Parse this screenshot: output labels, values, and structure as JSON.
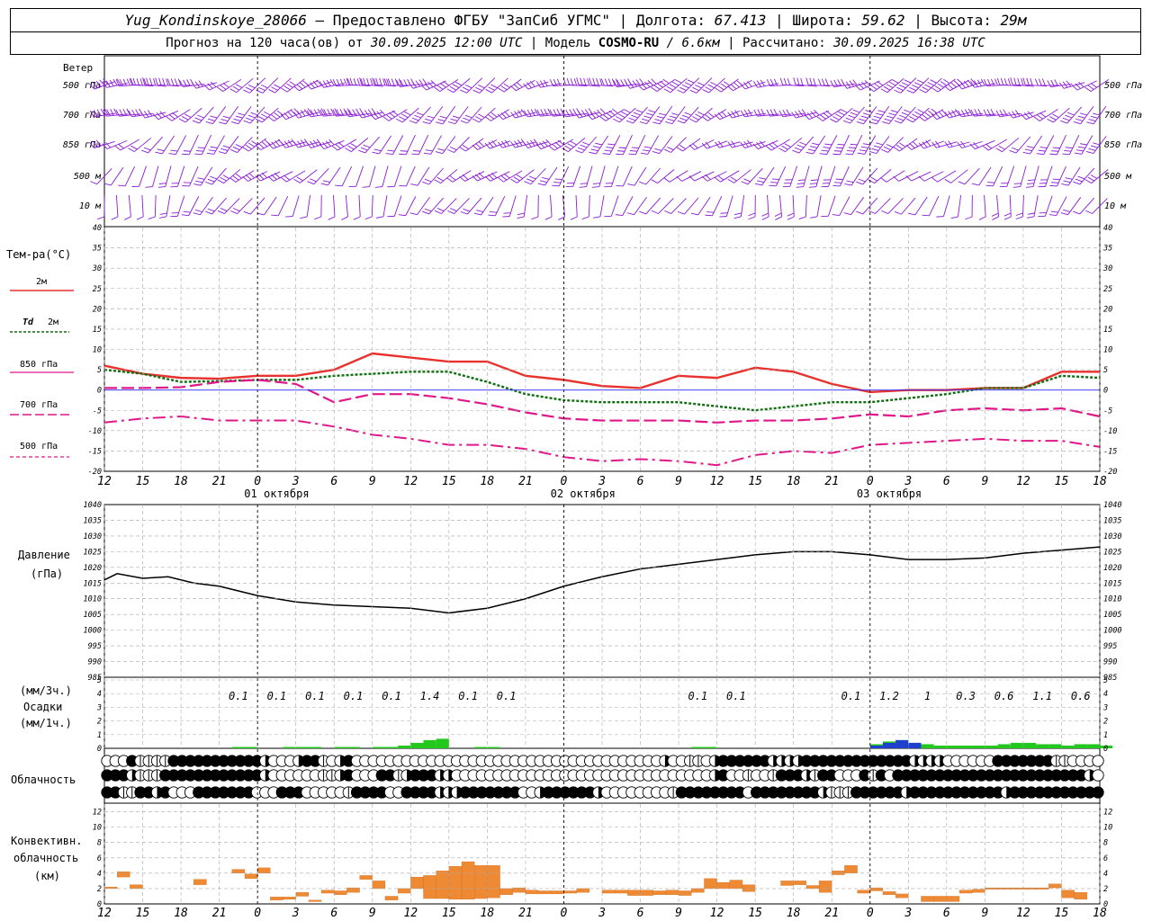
{
  "header": {
    "station": "Yug_Kondinskoye_28066",
    "provided": "– Предоставлено ФГБУ \"ЗапСиб УГМС\"",
    "lon_label": "Долгота:",
    "lon": "67.413",
    "lat_label": "Широта:",
    "lat": "59.62",
    "alt_label": "Высота:",
    "alt": "29м",
    "forecast_label": "Прогноз на 120 часа(ов) от",
    "forecast_from": "30.09.2025 12:00 UTC",
    "model_label": "Модель",
    "model": "COSMO-RU",
    "model_res": "/ 6.6км",
    "calc_label": "Рассчитано:",
    "calc_time": "30.09.2025 16:38 UTC"
  },
  "colors": {
    "t2m": "#e8322e",
    "td2m": "#0f6e0f",
    "t850": "#e0178a",
    "wind": "#8a1bd6",
    "pressure": "#000000",
    "precip_green": "#22c81e",
    "precip_blue": "#1f3fcf",
    "convective": "#ee8a33",
    "grid": "#a8a8a8"
  },
  "wind_panel": {
    "title": "Ветер",
    "levels": [
      "500 гПа",
      "700 гПа",
      "850 гПа",
      "500 м",
      "10 м"
    ]
  },
  "temp_panel": {
    "title": "Тем-ра(°С)",
    "legend": [
      {
        "label": "2м",
        "style": "solid-red"
      },
      {
        "label": "Td",
        "label2": "2м",
        "style": "dotted-green"
      },
      {
        "label": "850 гПа",
        "style": "dash-magenta"
      },
      {
        "label": "700 гПа",
        "style": "dashdot-magenta"
      },
      {
        "label": "500 гПа",
        "style": "thin-dash-magenta"
      }
    ]
  },
  "pressure_panel": {
    "title": "Давление",
    "unit": "(гПа)"
  },
  "precip_panel": {
    "unit_top": "(мм/3ч.)",
    "title": "Осадки",
    "unit_bottom": "(мм/1ч.)"
  },
  "cloud_panel": {
    "title": "Облачность"
  },
  "conv_panel": {
    "title_l1": "Конвективн.",
    "title_l2": "облачность",
    "unit": "(км)"
  },
  "time_axis": {
    "hours": [
      "12",
      "15",
      "18",
      "21",
      "0",
      "3",
      "6",
      "9",
      "12",
      "15",
      "18",
      "21",
      "0",
      "3",
      "6",
      "9",
      "12",
      "15",
      "18",
      "21",
      "0",
      "3",
      "6",
      "9",
      "12",
      "15",
      "18"
    ],
    "dates": [
      {
        "label": "01 октября",
        "at": 13.5
      },
      {
        "label": "02 октября",
        "at": 37.5
      },
      {
        "label": "03 октября",
        "at": 61.5
      }
    ],
    "day_boundaries": [
      12,
      36,
      60
    ]
  },
  "chart_data": [
    {
      "type": "line",
      "title": "Тем-ра(°С)",
      "ylim": [
        -20,
        40
      ],
      "yticks": [
        -20,
        -15,
        -10,
        -5,
        0,
        5,
        10,
        15,
        20,
        25,
        30,
        35,
        40
      ],
      "x_hours_from_start": [
        0,
        3,
        6,
        9,
        12,
        15,
        18,
        21,
        24,
        27,
        30,
        33,
        36,
        39,
        42,
        45,
        48,
        51,
        54,
        57,
        60,
        63,
        66,
        69,
        72,
        75,
        78
      ],
      "series": [
        {
          "name": "2м",
          "values": [
            6,
            4,
            3,
            2.8,
            3.5,
            3.5,
            5,
            9,
            8,
            7,
            7,
            3.5,
            2.5,
            1,
            0.5,
            3.5,
            3,
            5.5,
            4.5,
            1.5,
            -0.5,
            0,
            0,
            0.5,
            0.5,
            4.5,
            4.5
          ]
        },
        {
          "name": "Td 2м",
          "values": [
            5,
            4,
            2,
            2.2,
            2.5,
            2.5,
            3.5,
            4,
            4.5,
            4.5,
            2,
            -1,
            -2.5,
            -3,
            -3,
            -3,
            -4,
            -5,
            -4,
            -3,
            -3,
            -2,
            -1,
            0.5,
            0.5,
            3.5,
            3
          ]
        },
        {
          "name": "850 гПа",
          "values": [
            0.5,
            0.5,
            0.7,
            2,
            2.5,
            1.5,
            -3,
            -1,
            -1,
            -2,
            -3.5,
            -5.5,
            -7,
            -7.5,
            -7.5,
            -7.5,
            -8,
            -7.5,
            -7.5,
            -7,
            -6,
            -6.5,
            -5,
            -4.5,
            -5,
            -4.5,
            -6.5
          ]
        },
        {
          "name": "700 гПа",
          "values": [
            -8,
            -7,
            -6.5,
            -7.5,
            -7.5,
            -7.5,
            -9,
            -11,
            -12,
            -13.5,
            -13.5,
            -14.5,
            -16.5,
            -17.5,
            -17,
            -17.5,
            -18.5,
            -16,
            -15,
            -15.5,
            -13.5,
            -13,
            -12.5,
            -12,
            -12.5,
            -12.5,
            -14
          ]
        },
        {
          "name": "500 гПа",
          "values": []
        }
      ]
    },
    {
      "type": "line",
      "title": "Давление",
      "ylabel": "(гПа)",
      "ylim": [
        985,
        1040
      ],
      "yticks": [
        985,
        990,
        995,
        1000,
        1005,
        1010,
        1015,
        1020,
        1025,
        1030,
        1035,
        1040
      ],
      "x_hours_from_start": [
        0,
        1,
        3,
        5,
        7,
        9,
        12,
        15,
        18,
        21,
        24,
        27,
        30,
        33,
        36,
        39,
        42,
        45,
        48,
        51,
        54,
        57,
        60,
        63,
        66,
        69,
        72,
        75,
        78
      ],
      "series": [
        {
          "name": "Давление",
          "values": [
            1016,
            1018,
            1016.5,
            1017,
            1015,
            1014,
            1011,
            1009,
            1008,
            1007.5,
            1007,
            1005.5,
            1007,
            1010,
            1014,
            1017,
            1019.5,
            1021,
            1022.5,
            1024,
            1025,
            1025,
            1024,
            1022.5,
            1022.5,
            1023,
            1024.5,
            1025.5,
            1026.5
          ]
        }
      ]
    },
    {
      "type": "bar",
      "title": "Осадки",
      "totals_3h": [
        {
          "hour": 10.5,
          "label": "0.1"
        },
        {
          "hour": 13.5,
          "label": "0.1"
        },
        {
          "hour": 16.5,
          "label": "0.1"
        },
        {
          "hour": 19.5,
          "label": "0.1"
        },
        {
          "hour": 22.5,
          "label": "0.1"
        },
        {
          "hour": 25.5,
          "label": "1.4"
        },
        {
          "hour": 28.5,
          "label": "0.1"
        },
        {
          "hour": 31.5,
          "label": "0.1"
        },
        {
          "hour": 46.5,
          "label": "0.1"
        },
        {
          "hour": 49.5,
          "label": "0.1"
        },
        {
          "hour": 58.5,
          "label": "0.1"
        },
        {
          "hour": 61.5,
          "label": "1.2"
        },
        {
          "hour": 64.5,
          "label": "1"
        },
        {
          "hour": 67.5,
          "label": "0.3"
        },
        {
          "hour": 70.5,
          "label": "0.6"
        },
        {
          "hour": 73.5,
          "label": "1.1"
        },
        {
          "hour": 76.5,
          "label": "0.6"
        }
      ],
      "hourly_mm": [
        0,
        0,
        0,
        0,
        0,
        0,
        0,
        0,
        0,
        0,
        0.1,
        0.1,
        0,
        0,
        0.1,
        0.1,
        0.1,
        0,
        0.1,
        0.1,
        0,
        0.1,
        0.1,
        0.2,
        0.4,
        0.6,
        0.7,
        0,
        0,
        0.1,
        0.1,
        0,
        0,
        0,
        0,
        0,
        0,
        0,
        0,
        0,
        0,
        0,
        0,
        0,
        0,
        0,
        0.1,
        0.1,
        0,
        0,
        0,
        0,
        0,
        0,
        0,
        0,
        0,
        0,
        0,
        0,
        0.3,
        0.5,
        0.6,
        0.4,
        0.3,
        0.2,
        0.2,
        0.2,
        0.2,
        0.2,
        0.3,
        0.4,
        0.4,
        0.3,
        0.3,
        0.2,
        0.3,
        0.3,
        0.2
      ],
      "hourly_blue_mm": [
        0,
        0,
        0,
        0,
        0,
        0,
        0,
        0,
        0,
        0,
        0,
        0,
        0,
        0,
        0,
        0,
        0,
        0,
        0,
        0,
        0,
        0,
        0,
        0,
        0,
        0,
        0,
        0,
        0,
        0,
        0,
        0,
        0,
        0,
        0,
        0,
        0,
        0,
        0,
        0,
        0,
        0,
        0,
        0,
        0,
        0,
        0,
        0,
        0,
        0,
        0,
        0,
        0,
        0,
        0,
        0,
        0,
        0,
        0,
        0,
        0.2,
        0.4,
        0.6,
        0.4,
        0,
        0,
        0,
        0,
        0,
        0,
        0,
        0,
        0,
        0,
        0,
        0,
        0,
        0,
        0
      ],
      "ylim": [
        0,
        5
      ]
    },
    {
      "type": "bar",
      "title": "Конвективн. облачность",
      "ylabel": "(км)",
      "ylim": [
        0,
        13
      ],
      "yticks": [
        0,
        2,
        4,
        6,
        8,
        10,
        12
      ],
      "segments": [
        {
          "h": 0,
          "lo": 2,
          "hi": 2.2
        },
        {
          "h": 1,
          "lo": 3.5,
          "hi": 4.2
        },
        {
          "h": 2,
          "lo": 2,
          "hi": 2.5
        },
        {
          "h": 7,
          "lo": 2.5,
          "hi": 3.2
        },
        {
          "h": 10,
          "lo": 4,
          "hi": 4.5
        },
        {
          "h": 11,
          "lo": 3.3,
          "hi": 3.9
        },
        {
          "h": 12,
          "lo": 4,
          "hi": 4.7
        },
        {
          "h": 13,
          "lo": 0.5,
          "hi": 0.9
        },
        {
          "h": 14,
          "lo": 0.6,
          "hi": 0.9
        },
        {
          "h": 15,
          "lo": 1,
          "hi": 1.5
        },
        {
          "h": 16,
          "lo": 0.3,
          "hi": 0.5
        },
        {
          "h": 17,
          "lo": 1.4,
          "hi": 1.8
        },
        {
          "h": 18,
          "lo": 1.2,
          "hi": 1.7
        },
        {
          "h": 19,
          "lo": 1.5,
          "hi": 2.1
        },
        {
          "h": 20,
          "lo": 3.2,
          "hi": 3.7
        },
        {
          "h": 21,
          "lo": 2,
          "hi": 3
        },
        {
          "h": 22,
          "lo": 0.5,
          "hi": 1
        },
        {
          "h": 23,
          "lo": 1.4,
          "hi": 2
        },
        {
          "h": 24,
          "lo": 2,
          "hi": 3.5
        },
        {
          "h": 25,
          "lo": 0.7,
          "hi": 3.7
        },
        {
          "h": 26,
          "lo": 0.7,
          "hi": 4.3
        },
        {
          "h": 27,
          "lo": 0.6,
          "hi": 4.9
        },
        {
          "h": 28,
          "lo": 0.6,
          "hi": 5.5
        },
        {
          "h": 29,
          "lo": 0.7,
          "hi": 5
        },
        {
          "h": 30,
          "lo": 0.8,
          "hi": 5
        },
        {
          "h": 31,
          "lo": 1.2,
          "hi": 2
        },
        {
          "h": 32,
          "lo": 1.5,
          "hi": 2.1
        },
        {
          "h": 33,
          "lo": 1.3,
          "hi": 1.8
        },
        {
          "h": 34,
          "lo": 1.3,
          "hi": 1.7
        },
        {
          "h": 35,
          "lo": 1.3,
          "hi": 1.7
        },
        {
          "h": 36,
          "lo": 1.4,
          "hi": 1.7
        },
        {
          "h": 37,
          "lo": 1.5,
          "hi": 2
        },
        {
          "h": 39,
          "lo": 1.4,
          "hi": 1.8
        },
        {
          "h": 40,
          "lo": 1.4,
          "hi": 1.8
        },
        {
          "h": 41,
          "lo": 1.1,
          "hi": 1.8
        },
        {
          "h": 42,
          "lo": 1.1,
          "hi": 1.8
        },
        {
          "h": 43,
          "lo": 1.2,
          "hi": 1.7
        },
        {
          "h": 44,
          "lo": 1.2,
          "hi": 1.8
        },
        {
          "h": 45,
          "lo": 1.1,
          "hi": 1.7
        },
        {
          "h": 46,
          "lo": 1.5,
          "hi": 2
        },
        {
          "h": 47,
          "lo": 2,
          "hi": 3.3
        },
        {
          "h": 48,
          "lo": 2,
          "hi": 2.8
        },
        {
          "h": 49,
          "lo": 2,
          "hi": 3.1
        },
        {
          "h": 50,
          "lo": 1.6,
          "hi": 2.5
        },
        {
          "h": 53,
          "lo": 2.4,
          "hi": 3
        },
        {
          "h": 54,
          "lo": 2.5,
          "hi": 3
        },
        {
          "h": 55,
          "lo": 2,
          "hi": 2.4
        },
        {
          "h": 56,
          "lo": 1.5,
          "hi": 3
        },
        {
          "h": 57,
          "lo": 3.8,
          "hi": 4.3
        },
        {
          "h": 58,
          "lo": 4,
          "hi": 5
        },
        {
          "h": 59,
          "lo": 1.4,
          "hi": 1.8
        },
        {
          "h": 60,
          "lo": 1.7,
          "hi": 2.1
        },
        {
          "h": 61,
          "lo": 1.2,
          "hi": 1.6
        },
        {
          "h": 62,
          "lo": 0.8,
          "hi": 1.3
        },
        {
          "h": 64,
          "lo": 0.3,
          "hi": 1
        },
        {
          "h": 65,
          "lo": 0.3,
          "hi": 1
        },
        {
          "h": 66,
          "lo": 0.3,
          "hi": 1
        },
        {
          "h": 67,
          "lo": 1.4,
          "hi": 1.8
        },
        {
          "h": 68,
          "lo": 1.5,
          "hi": 1.9
        },
        {
          "h": 69,
          "lo": 1.9,
          "hi": 2.1
        },
        {
          "h": 70,
          "lo": 1.9,
          "hi": 2.1
        },
        {
          "h": 71,
          "lo": 1.9,
          "hi": 2.1
        },
        {
          "h": 72,
          "lo": 1.9,
          "hi": 2.1
        },
        {
          "h": 73,
          "lo": 1.9,
          "hi": 2.1
        },
        {
          "h": 74,
          "lo": 2.1,
          "hi": 2.6
        },
        {
          "h": 75,
          "lo": 0.8,
          "hi": 1.8
        },
        {
          "h": 76,
          "lo": 0.6,
          "hi": 1.5
        }
      ]
    }
  ],
  "cloud_rows": {
    "top": "000311113333333333320002331023000000000000000000000000000000000000020011023333332222333333333333322220000003333333110000",
    "middle": "333211133333333333320000001123000331233322000000000000000000000000000000023001001333213300031303333333333333333333333320",
    "bottom": "331133230003333333000333000001333300333322233333330023333332000000001333333330333333332111333333233333333333233333333333"
  }
}
